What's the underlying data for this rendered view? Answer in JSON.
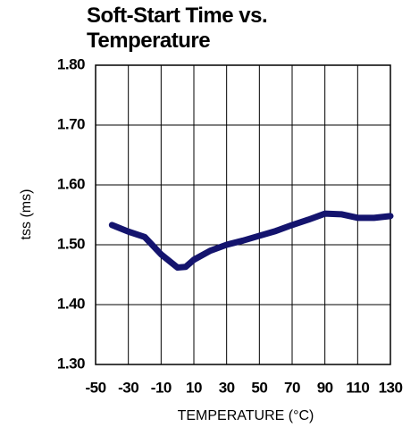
{
  "chart_data": {
    "type": "line",
    "title": "Soft-Start Time vs. Temperature",
    "x_label": "TEMPERATURE (°C)",
    "y_label": "tss (ms)",
    "x": [
      -40,
      -30,
      -20,
      -10,
      0,
      5,
      10,
      20,
      30,
      40,
      50,
      60,
      70,
      80,
      90,
      100,
      110,
      120,
      130
    ],
    "series": [
      {
        "name": "tss",
        "color": "#14146e",
        "values": [
          1.533,
          1.522,
          1.513,
          1.484,
          1.462,
          1.463,
          1.475,
          1.49,
          1.5,
          1.507,
          1.515,
          1.523,
          1.533,
          1.542,
          1.552,
          1.551,
          1.545,
          1.545,
          1.548
        ]
      }
    ],
    "xlim": [
      -50,
      130
    ],
    "xticks": [
      -50,
      -30,
      -10,
      10,
      30,
      50,
      70,
      90,
      110,
      130
    ],
    "xgrid": [
      -50,
      -30,
      -10,
      10,
      30,
      50,
      70,
      90,
      110,
      130
    ],
    "ylim": [
      1.3,
      1.8
    ],
    "yticks": [
      {
        "value": 1.3,
        "label": "1.30"
      },
      {
        "value": 1.4,
        "label": "1.40"
      },
      {
        "value": 1.5,
        "label": "1.50"
      },
      {
        "value": 1.6,
        "label": "1.60"
      },
      {
        "value": 1.7,
        "label": "1.70"
      },
      {
        "value": 1.8,
        "label": "1.80"
      }
    ],
    "grid": true
  }
}
